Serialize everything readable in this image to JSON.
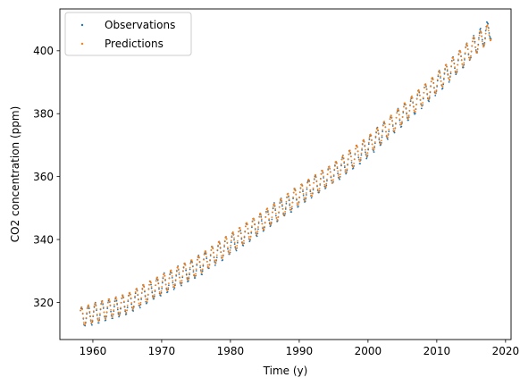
{
  "chart_data": {
    "type": "scatter",
    "xlabel": "Time (y)",
    "ylabel": "CO2 concentration (ppm)",
    "xlim": [
      1955.2,
      2020.8
    ],
    "ylim": [
      308.2,
      413.3
    ],
    "xticks": [
      1960,
      1970,
      1980,
      1990,
      2000,
      2010,
      2020
    ],
    "yticks": [
      320,
      340,
      360,
      380,
      400
    ],
    "grid": false,
    "legend": "upper-left",
    "sampling": {
      "x_start": 1958.2,
      "x_end": 2017.9,
      "points_per_year": 12
    },
    "series": [
      {
        "name": "Observations",
        "color": "#1f77b4",
        "trend_anchors": {
          "x": [
            1958,
            1965,
            1970,
            1975,
            1980,
            1985,
            1990,
            1995,
            2000,
            2005,
            2010,
            2015,
            2018
          ],
          "y": [
            315.0,
            319.5,
            325.5,
            331.0,
            338.5,
            346.0,
            354.0,
            361.0,
            369.5,
            379.5,
            389.5,
            400.5,
            407.5
          ]
        },
        "seasonal_amplitude": 3.2,
        "seasonal_phase": 0.08,
        "noise": 0.35
      },
      {
        "name": "Predictions",
        "color": "#ff7f0e",
        "trend_anchors": {
          "x": [
            1958,
            1965,
            1970,
            1975,
            1980,
            1985,
            1990,
            1995,
            2000,
            2005,
            2010,
            2015,
            2018
          ],
          "y": [
            315.3,
            319.8,
            325.8,
            331.3,
            338.8,
            346.3,
            354.2,
            361.3,
            369.8,
            379.8,
            389.8,
            400.6,
            406.5
          ]
        },
        "seasonal_amplitude": 3.0,
        "seasonal_phase": 0.08,
        "noise": 0.1
      }
    ]
  }
}
